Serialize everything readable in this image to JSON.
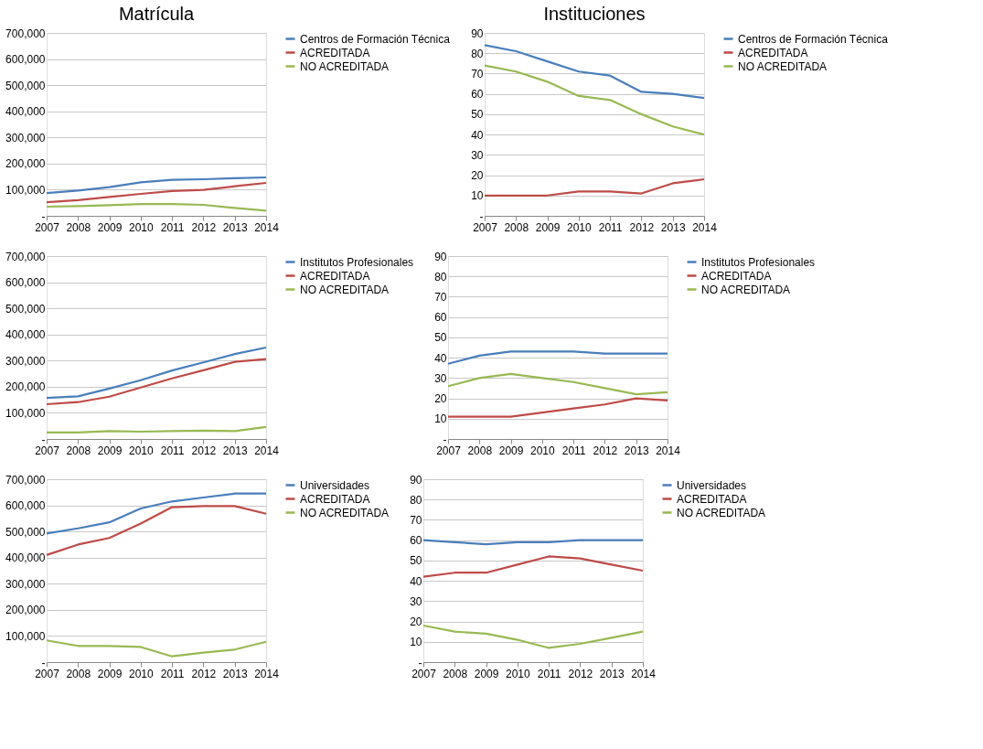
{
  "chart_data": [
    {
      "type": "line",
      "title": "Matrícula",
      "categories": [
        "2007",
        "2008",
        "2009",
        "2010",
        "2011",
        "2012",
        "2013",
        "2014"
      ],
      "ylim": [
        0,
        700000
      ],
      "yticks": [
        {
          "value": 0,
          "label": "-"
        },
        {
          "value": 100000,
          "label": "100,000"
        },
        {
          "value": 200000,
          "label": "200,000"
        },
        {
          "value": 300000,
          "label": "300,000"
        },
        {
          "value": 400000,
          "label": "400,000"
        },
        {
          "value": 500000,
          "label": "500,000"
        },
        {
          "value": 600000,
          "label": "600,000"
        },
        {
          "value": 700000,
          "label": "700,000"
        }
      ],
      "grid": "y",
      "legend": "right",
      "marker": "none",
      "line_style": "solid",
      "series": [
        {
          "name": "Centros de Formación Técnica",
          "color": "#4a7ebb",
          "values": [
            87000,
            97000,
            110000,
            128000,
            138000,
            140000,
            144000,
            147000
          ]
        },
        {
          "name": "ACREDITADA",
          "color": "#be4b48",
          "values": [
            52000,
            60000,
            72000,
            84000,
            95000,
            99000,
            113000,
            126000
          ]
        },
        {
          "name": "NO ACREDITADA",
          "color": "#98b954",
          "values": [
            35000,
            37000,
            41000,
            45000,
            45000,
            42000,
            30000,
            20000
          ]
        }
      ]
    },
    {
      "type": "line",
      "title": "Instituciones",
      "categories": [
        "2007",
        "2008",
        "2009",
        "2010",
        "2011",
        "2012",
        "2013",
        "2014"
      ],
      "ylim": [
        0,
        90
      ],
      "yticks": [
        {
          "value": 0,
          "label": "-"
        },
        10,
        20,
        30,
        40,
        50,
        60,
        70,
        80,
        90
      ],
      "grid": "y",
      "legend": "right",
      "marker": "none",
      "line_style": "solid",
      "series": [
        {
          "name": "Centros de Formación Técnica",
          "color": "#4a7ebb",
          "values": [
            84,
            81,
            76,
            71,
            69,
            61,
            60,
            58
          ]
        },
        {
          "name": "ACREDITADA",
          "color": "#be4b48",
          "values": [
            10,
            10,
            10,
            12,
            12,
            11,
            16,
            18
          ]
        },
        {
          "name": "NO ACREDITADA",
          "color": "#98b954",
          "values": [
            74,
            71,
            66,
            59,
            57,
            50,
            44,
            40
          ]
        }
      ]
    },
    {
      "type": "line",
      "categories": [
        "2007",
        "2008",
        "2009",
        "2010",
        "2011",
        "2012",
        "2013",
        "2014"
      ],
      "ylim": [
        0,
        700000
      ],
      "yticks": [
        {
          "value": 0,
          "label": "-"
        },
        {
          "value": 100000,
          "label": "100,000"
        },
        {
          "value": 200000,
          "label": "200,000"
        },
        {
          "value": 300000,
          "label": "300,000"
        },
        {
          "value": 400000,
          "label": "400,000"
        },
        {
          "value": 500000,
          "label": "500,000"
        },
        {
          "value": 600000,
          "label": "600,000"
        },
        {
          "value": 700000,
          "label": "700,000"
        }
      ],
      "grid": "y",
      "legend": "right",
      "marker": "none",
      "line_style": "solid",
      "series": [
        {
          "name": "Institutos Profesionales",
          "color": "#4a7ebb",
          "values": [
            157000,
            163000,
            193000,
            225000,
            262000,
            293000,
            325000,
            350000
          ]
        },
        {
          "name": "ACREDITADA",
          "color": "#be4b48",
          "values": [
            133000,
            141000,
            162000,
            197000,
            232000,
            263000,
            295000,
            306000
          ]
        },
        {
          "name": "NO ACREDITADA",
          "color": "#98b954",
          "values": [
            25000,
            25000,
            30000,
            28000,
            30000,
            32000,
            30000,
            46000
          ]
        }
      ]
    },
    {
      "type": "line",
      "categories": [
        "2007",
        "2008",
        "2009",
        "2010",
        "2011",
        "2012",
        "2013",
        "2014"
      ],
      "ylim": [
        0,
        90
      ],
      "yticks": [
        {
          "value": 0,
          "label": "-"
        },
        10,
        20,
        30,
        40,
        50,
        60,
        70,
        80,
        90
      ],
      "grid": "y",
      "legend": "right",
      "marker": "none",
      "line_style": "solid",
      "series": [
        {
          "name": "Institutos Profesionales",
          "color": "#4a7ebb",
          "values": [
            37,
            41,
            43,
            43,
            43,
            42,
            42,
            42
          ]
        },
        {
          "name": "ACREDITADA",
          "color": "#be4b48",
          "values": [
            11,
            11,
            11,
            13,
            15,
            17,
            20,
            19
          ]
        },
        {
          "name": "NO ACREDITADA",
          "color": "#98b954",
          "values": [
            26,
            30,
            32,
            30,
            28,
            25,
            22,
            23
          ]
        }
      ]
    },
    {
      "type": "line",
      "categories": [
        "2007",
        "2008",
        "2009",
        "2010",
        "2011",
        "2012",
        "2013",
        "2014"
      ],
      "ylim": [
        0,
        700000
      ],
      "yticks": [
        {
          "value": 0,
          "label": "-"
        },
        {
          "value": 100000,
          "label": "100,000"
        },
        {
          "value": 200000,
          "label": "200,000"
        },
        {
          "value": 300000,
          "label": "300,000"
        },
        {
          "value": 400000,
          "label": "400,000"
        },
        {
          "value": 500000,
          "label": "500,000"
        },
        {
          "value": 600000,
          "label": "600,000"
        },
        {
          "value": 700000,
          "label": "700,000"
        }
      ],
      "grid": "y",
      "legend": "right",
      "marker": "none",
      "line_style": "solid",
      "series": [
        {
          "name": "Universidades",
          "color": "#4a7ebb",
          "values": [
            492000,
            512000,
            535000,
            588000,
            615000,
            630000,
            645000,
            645000
          ]
        },
        {
          "name": "ACREDITADA",
          "color": "#be4b48",
          "values": [
            410000,
            450000,
            475000,
            530000,
            593000,
            597000,
            597000,
            568000
          ]
        },
        {
          "name": "NO ACREDITADA",
          "color": "#98b954",
          "values": [
            83000,
            62000,
            62000,
            58000,
            22000,
            36000,
            48000,
            78000
          ]
        }
      ]
    },
    {
      "type": "line",
      "categories": [
        "2007",
        "2008",
        "2009",
        "2010",
        "2011",
        "2012",
        "2013",
        "2014"
      ],
      "ylim": [
        0,
        90
      ],
      "yticks": [
        {
          "value": 0,
          "label": "-"
        },
        10,
        20,
        30,
        40,
        50,
        60,
        70,
        80,
        90
      ],
      "grid": "y",
      "legend": "right",
      "marker": "none",
      "line_style": "solid",
      "series": [
        {
          "name": "Universidades",
          "color": "#4a7ebb",
          "values": [
            60,
            59,
            58,
            59,
            59,
            60,
            60,
            60
          ]
        },
        {
          "name": "ACREDITADA",
          "color": "#be4b48",
          "values": [
            42,
            44,
            44,
            48,
            52,
            51,
            48,
            45
          ]
        },
        {
          "name": "NO ACREDITADA",
          "color": "#98b954",
          "values": [
            18,
            15,
            14,
            11,
            7,
            9,
            12,
            15
          ]
        }
      ]
    }
  ]
}
